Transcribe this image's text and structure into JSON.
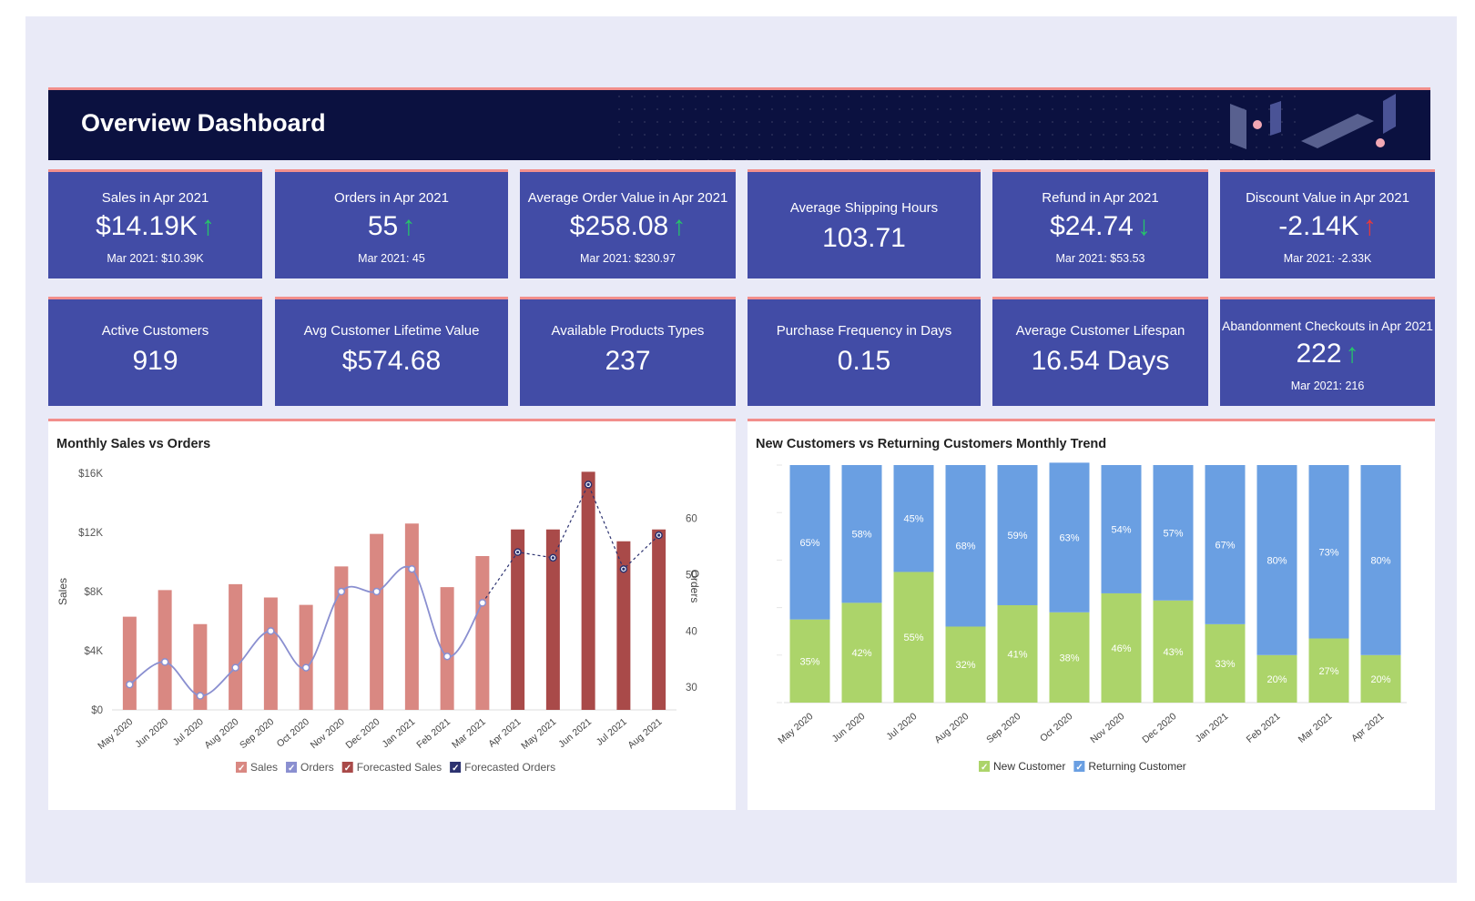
{
  "dashboard": {
    "title": "Overview Dashboard",
    "colors": {
      "header_bg": "#0b1140",
      "card_bg": "#424ca6",
      "accent_line": "#f28f8c",
      "up_arrow": "#26c46a",
      "down_arrow_bad": "#e83a3a"
    }
  },
  "kpis_row1": [
    {
      "title": "Sales in Apr 2021",
      "value": "$14.19K",
      "arrow": "↑",
      "previous": "Mar 2021: $10.39K"
    },
    {
      "title": "Orders in Apr 2021",
      "value": "55",
      "arrow": "↑",
      "previous": "Mar 2021: 45"
    },
    {
      "title": "Average Order Value in Apr 2021",
      "value": "$258.08",
      "arrow": "↑",
      "previous": "Mar 2021: $230.97"
    },
    {
      "title": "Average Shipping Hours",
      "value": "103.71"
    },
    {
      "title": "Refund in Apr 2021",
      "value": "$24.74",
      "arrow": "↓",
      "previous": "Mar 2021: $53.53"
    },
    {
      "title": "Discount Value in Apr 2021",
      "value": "-2.14K",
      "arrow": "↑",
      "previous": "Mar 2021: -2.33K"
    }
  ],
  "kpis_row2": [
    {
      "title": "Active Customers",
      "value": "919"
    },
    {
      "title": "Avg Customer Lifetime Value",
      "value": "$574.68"
    },
    {
      "title": "Available Products Types",
      "value": "237"
    },
    {
      "title": "Purchase Frequency in Days",
      "value": "0.15"
    },
    {
      "title": "Average Customer Lifespan",
      "value": "16.54 Days"
    },
    {
      "title": "Abandonment Checkouts in Apr 2021",
      "value": "222",
      "arrow": "↑",
      "previous": "Mar 2021: 216"
    }
  ],
  "chart_data": [
    {
      "type": "bar+line",
      "title": "Monthly Sales vs Orders",
      "categories": [
        "May 2020",
        "Jun 2020",
        "Jul 2020",
        "Aug 2020",
        "Sep 2020",
        "Oct 2020",
        "Nov 2020",
        "Dec 2020",
        "Jan 2021",
        "Feb 2021",
        "Mar 2021",
        "Apr 2021",
        "May 2021",
        "Jun 2021",
        "Jul 2021",
        "Aug 2021"
      ],
      "ylabel": "Sales",
      "y2label": "Orders",
      "ylim": [
        0,
        16000
      ],
      "yticks": [
        "$0",
        "$4K",
        "$8K",
        "$12K",
        "$16K"
      ],
      "y2lim": [
        26,
        68
      ],
      "y2ticks": [
        "30",
        "40",
        "50",
        "60"
      ],
      "series": [
        {
          "name": "Sales",
          "type": "bar",
          "color": "#d98882",
          "values": [
            6300,
            8100,
            5800,
            8500,
            7600,
            7100,
            9700,
            11900,
            12600,
            8300,
            10400,
            null,
            null,
            null,
            null,
            null
          ]
        },
        {
          "name": "Orders",
          "type": "line",
          "color": "#8a8fd0",
          "values": [
            30.5,
            34.5,
            28.5,
            33.5,
            40,
            33.5,
            47,
            47,
            51,
            35.5,
            45,
            null,
            null,
            null,
            null,
            null
          ]
        },
        {
          "name": "Forecasted Sales",
          "type": "bar",
          "color": "#a94a49",
          "values": [
            null,
            null,
            null,
            null,
            null,
            null,
            null,
            null,
            null,
            null,
            null,
            12200,
            12200,
            16100,
            11400,
            12200
          ]
        },
        {
          "name": "Forecasted Orders",
          "type": "line",
          "color": "#2c3270",
          "values": [
            null,
            null,
            null,
            null,
            null,
            null,
            null,
            null,
            null,
            null,
            45,
            54,
            53,
            66,
            51,
            57
          ]
        }
      ]
    },
    {
      "type": "stacked-bar",
      "title": "New Customers vs Returning Customers Monthly Trend",
      "categories": [
        "May 2020",
        "Jun 2020",
        "Jul 2020",
        "Aug 2020",
        "Sep 2020",
        "Oct 2020",
        "Nov 2020",
        "Dec 2020",
        "Jan 2021",
        "Feb 2021",
        "Mar 2021",
        "Apr 2021"
      ],
      "ylim": [
        0,
        100
      ],
      "series": [
        {
          "name": "New Customer",
          "color": "#acd46a",
          "values": [
            35,
            42,
            55,
            32,
            41,
            38,
            46,
            43,
            33,
            20,
            27,
            20
          ],
          "labels": [
            "35%",
            "42%",
            "55%",
            "32%",
            "41%",
            "38%",
            "46%",
            "43%",
            "33%",
            "20%",
            "27%",
            "20%"
          ]
        },
        {
          "name": "Returning Customer",
          "color": "#6a9fe2",
          "values": [
            65,
            58,
            45,
            68,
            59,
            63,
            54,
            57,
            67,
            80,
            73,
            80
          ],
          "labels": [
            "65%",
            "58%",
            "45%",
            "68%",
            "59%",
            "63%",
            "54%",
            "57%",
            "67%",
            "80%",
            "73%",
            "80%"
          ]
        }
      ]
    }
  ]
}
